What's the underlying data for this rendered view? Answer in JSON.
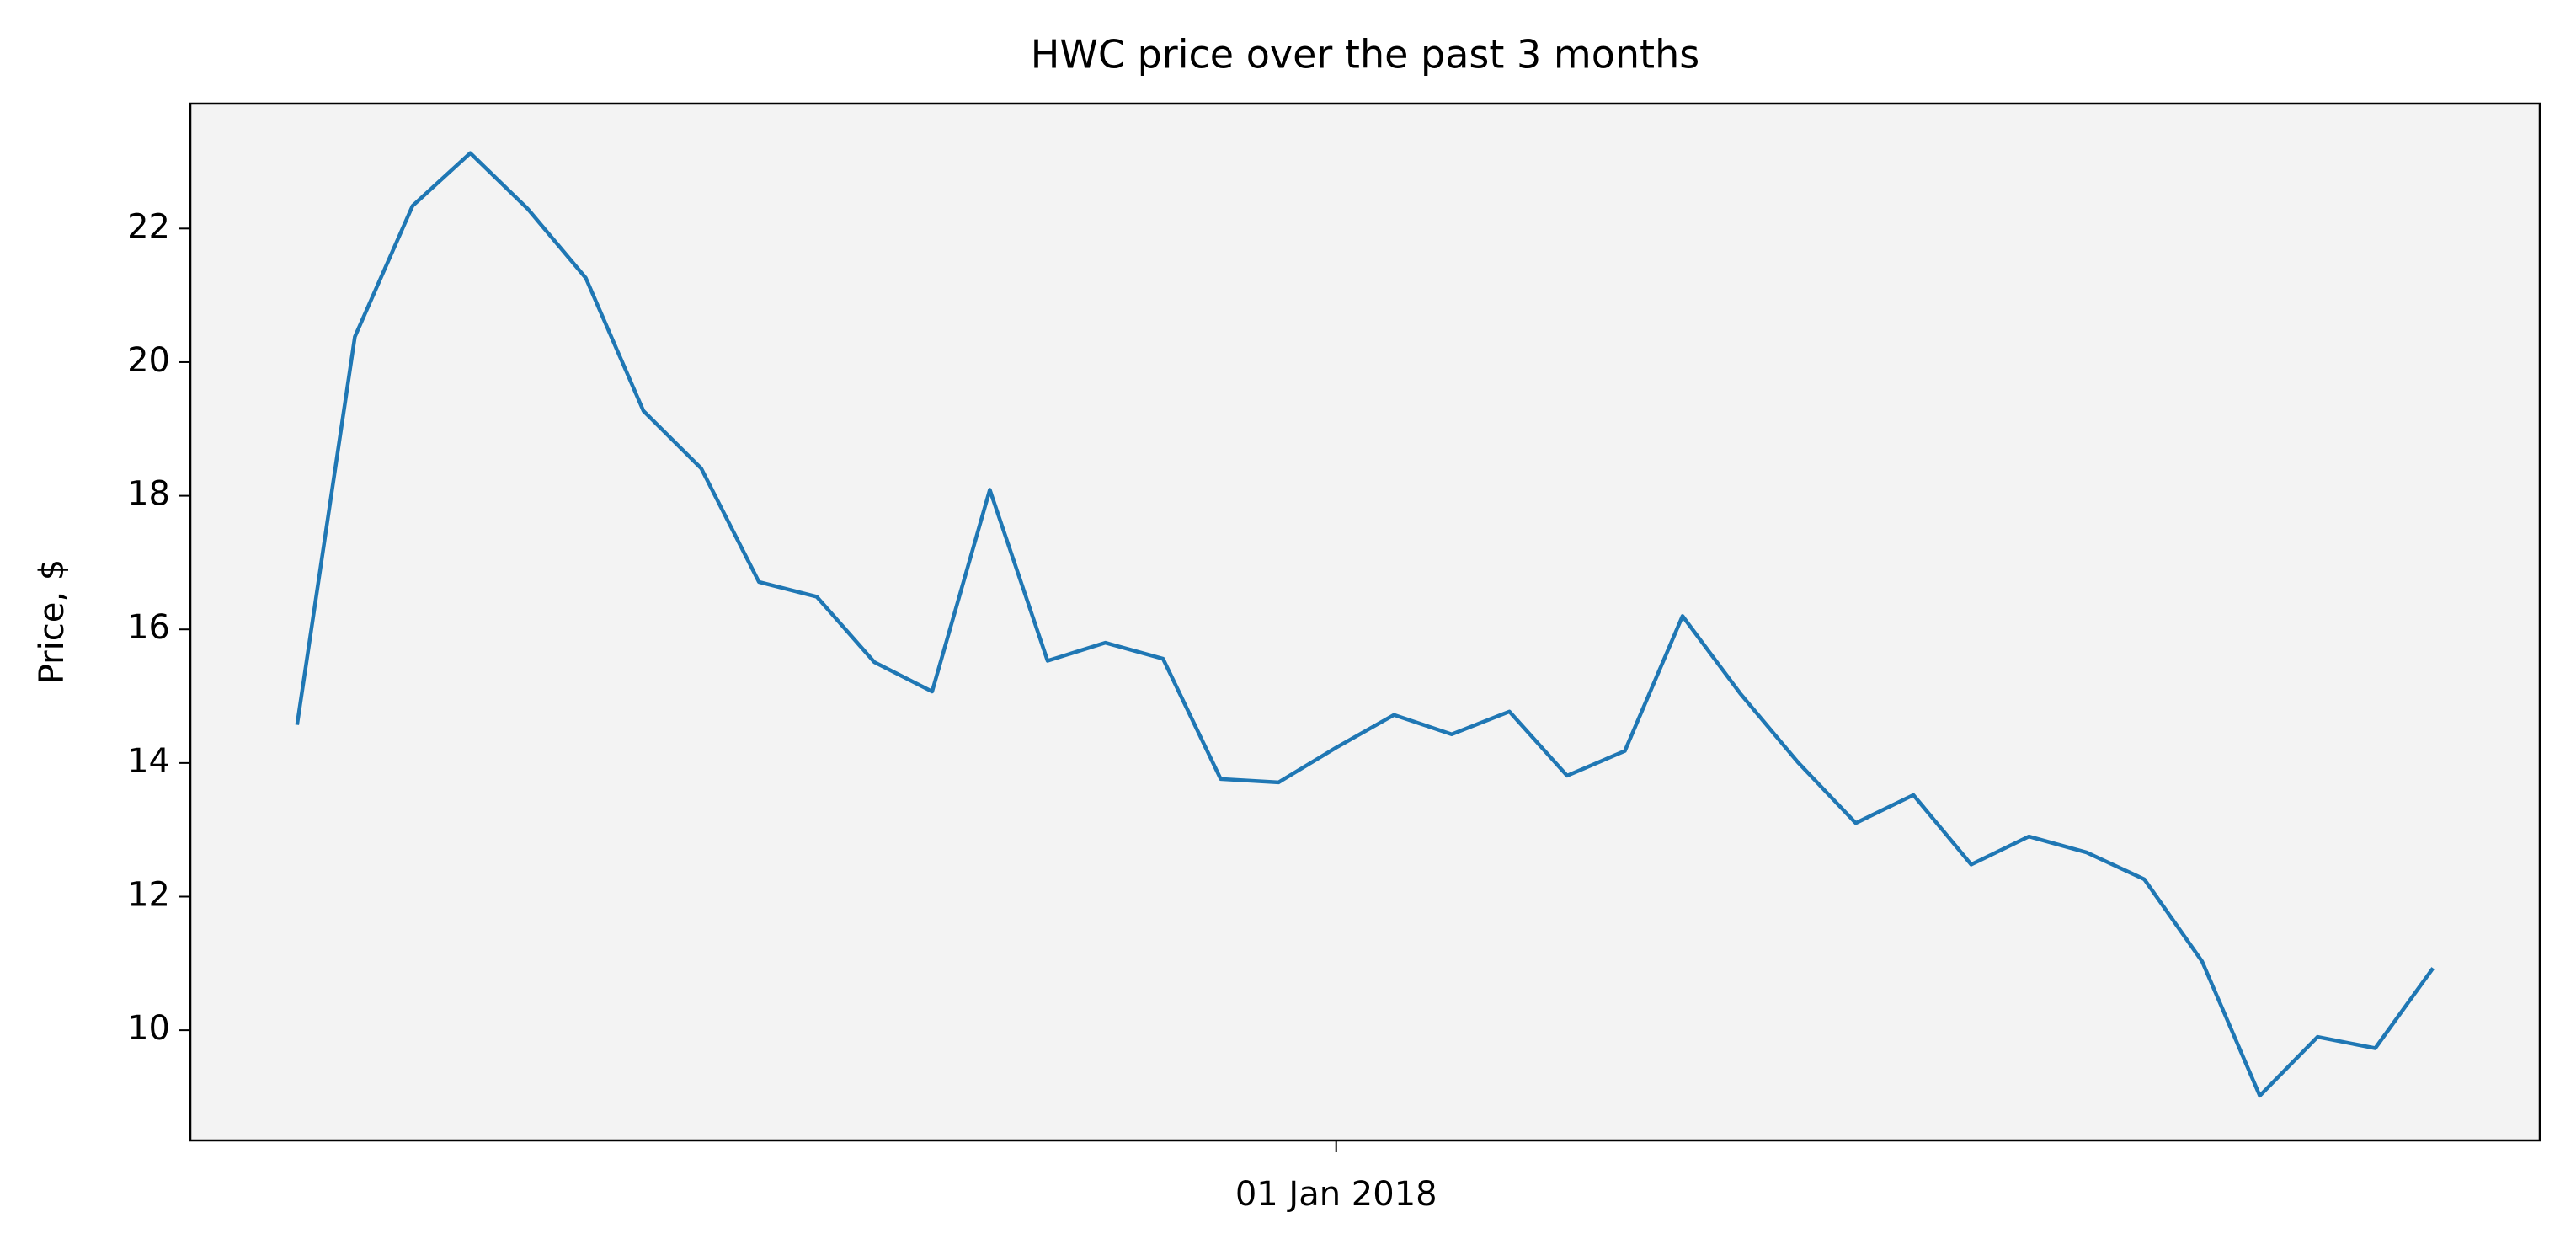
{
  "chart_data": {
    "type": "line",
    "title": "HWC price over the past 3 months",
    "y_label": "Price, $",
    "categories": [
      null,
      null,
      null,
      null,
      null,
      null,
      null,
      null,
      null,
      null,
      null,
      null,
      null,
      null,
      null,
      null,
      null,
      null,
      "01 Jan 2018",
      null,
      null,
      null,
      null,
      null,
      null,
      null,
      null,
      null,
      null,
      null,
      null,
      null,
      null,
      null,
      null,
      null,
      null,
      null
    ],
    "series": [
      {
        "name": "HWC",
        "color": "#1f77b4",
        "values": [
          14.57,
          20.38,
          22.34,
          23.13,
          22.29,
          21.26,
          19.27,
          18.41,
          16.71,
          16.49,
          15.51,
          15.07,
          18.09,
          15.53,
          15.8,
          15.56,
          13.76,
          13.71,
          14.23,
          14.72,
          14.43,
          14.77,
          13.81,
          14.18,
          16.2,
          15.04,
          14.01,
          13.1,
          13.52,
          12.48,
          12.9,
          12.66,
          12.26,
          11.03,
          9.02,
          9.9,
          9.73,
          10.93
        ]
      }
    ],
    "ylim": [
      8.35,
      23.87
    ],
    "yticks": [
      10,
      12,
      14,
      16,
      18,
      20,
      22
    ],
    "grid": false,
    "background": "#f3f3f3"
  }
}
